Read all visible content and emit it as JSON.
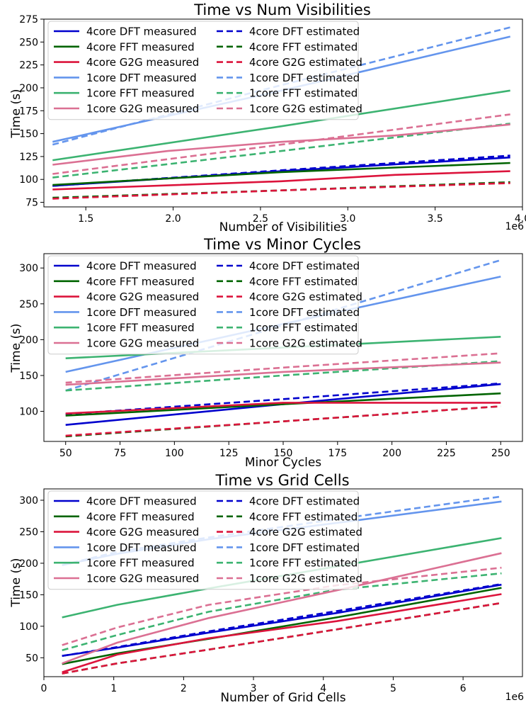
{
  "figure": {
    "legend_entries": [
      {
        "label": "4core DFT measured",
        "color": "#0000cd",
        "dash": false
      },
      {
        "label": "4core FFT measured",
        "color": "#006400",
        "dash": false
      },
      {
        "label": "4core G2G measured",
        "color": "#dc143c",
        "dash": false
      },
      {
        "label": "1core DFT measured",
        "color": "#6495ed",
        "dash": false
      },
      {
        "label": "1core FFT measured",
        "color": "#3cb371",
        "dash": false
      },
      {
        "label": "1core G2G measured",
        "color": "#db7093",
        "dash": false
      },
      {
        "label": "4core DFT estimated",
        "color": "#0000cd",
        "dash": true
      },
      {
        "label": "4core FFT estimated",
        "color": "#006400",
        "dash": true
      },
      {
        "label": "4core G2G estimated",
        "color": "#dc143c",
        "dash": true
      },
      {
        "label": "1core DFT estimated",
        "color": "#6495ed",
        "dash": true
      },
      {
        "label": "1core FFT estimated",
        "color": "#3cb371",
        "dash": true
      },
      {
        "label": "1core G2G estimated",
        "color": "#db7093",
        "dash": true
      }
    ]
  },
  "chart_data": [
    {
      "type": "line",
      "title": "Time vs Num Visibilities",
      "xlabel": "Number of Visibilities",
      "ylabel": "Time (s)",
      "x_offset_label": "1e6",
      "xlim": [
        1.26,
        4.0
      ],
      "ylim": [
        70,
        275
      ],
      "xticks": [
        1.5,
        2.0,
        2.5,
        3.0,
        3.5,
        4.0
      ],
      "xtick_labels": [
        "1.5",
        "2.0",
        "2.5",
        "3.0",
        "3.5",
        "4.0"
      ],
      "yticks": [
        75,
        100,
        125,
        150,
        175,
        200,
        225,
        250,
        275
      ],
      "ytick_labels": [
        "75",
        "100",
        "125",
        "150",
        "175",
        "200",
        "225",
        "250",
        "275"
      ],
      "legend_position": "upper-left",
      "series": [
        {
          "name": "4core DFT measured",
          "color": "#0000cd",
          "dash": false,
          "x": [
            1.31,
            2.62,
            3.93
          ],
          "y": [
            93,
            109,
            124
          ]
        },
        {
          "name": "4core FFT measured",
          "color": "#006400",
          "dash": false,
          "x": [
            1.31,
            2.62,
            3.93
          ],
          "y": [
            94,
            108,
            118
          ]
        },
        {
          "name": "4core G2G measured",
          "color": "#dc143c",
          "dash": false,
          "x": [
            1.31,
            2.62,
            3.27,
            3.93
          ],
          "y": [
            89,
            98,
            105,
            109
          ]
        },
        {
          "name": "1core DFT measured",
          "color": "#6495ed",
          "dash": false,
          "x": [
            1.31,
            2.62,
            3.93
          ],
          "y": [
            141,
            197,
            256
          ]
        },
        {
          "name": "1core FFT measured",
          "color": "#3cb371",
          "dash": false,
          "x": [
            1.31,
            2.62,
            3.93
          ],
          "y": [
            121,
            158,
            197
          ]
        },
        {
          "name": "1core G2G measured",
          "color": "#db7093",
          "dash": false,
          "x": [
            1.31,
            1.97,
            2.62,
            3.27,
            3.93
          ],
          "y": [
            116,
            131,
            141,
            148,
            160
          ]
        },
        {
          "name": "4core DFT estimated",
          "color": "#0000cd",
          "dash": true,
          "x": [
            1.31,
            2.62,
            3.93
          ],
          "y": [
            93,
            110,
            126
          ]
        },
        {
          "name": "4core FFT estimated",
          "color": "#006400",
          "dash": true,
          "x": [
            1.31,
            2.62,
            3.93
          ],
          "y": [
            80,
            88,
            97
          ]
        },
        {
          "name": "4core G2G estimated",
          "color": "#dc143c",
          "dash": true,
          "x": [
            1.31,
            2.62,
            3.93
          ],
          "y": [
            79,
            88,
            96
          ]
        },
        {
          "name": "1core DFT estimated",
          "color": "#6495ed",
          "dash": true,
          "x": [
            1.31,
            2.62,
            3.93
          ],
          "y": [
            138,
            203,
            266
          ]
        },
        {
          "name": "1core FFT estimated",
          "color": "#3cb371",
          "dash": true,
          "x": [
            1.31,
            2.62,
            3.93
          ],
          "y": [
            102,
            131,
            161
          ]
        },
        {
          "name": "1core G2G estimated",
          "color": "#db7093",
          "dash": true,
          "x": [
            1.31,
            2.62,
            3.93
          ],
          "y": [
            106,
            138,
            171
          ]
        }
      ]
    },
    {
      "type": "line",
      "title": "Time vs Minor Cycles",
      "xlabel": "Minor Cycles",
      "ylabel": "Time (s)",
      "x_offset_label": "",
      "xlim": [
        40,
        260
      ],
      "ylim": [
        58,
        320
      ],
      "xticks": [
        50,
        75,
        100,
        125,
        150,
        175,
        200,
        225,
        250
      ],
      "xtick_labels": [
        "50",
        "75",
        "100",
        "125",
        "150",
        "175",
        "200",
        "225",
        "250"
      ],
      "yticks": [
        100,
        150,
        200,
        250,
        300
      ],
      "ytick_labels": [
        "100",
        "150",
        "200",
        "250",
        "300"
      ],
      "legend_position": "upper-left",
      "series": [
        {
          "name": "4core DFT measured",
          "color": "#0000cd",
          "dash": false,
          "x": [
            50,
            150,
            250
          ],
          "y": [
            81,
            110,
            138
          ]
        },
        {
          "name": "4core FFT measured",
          "color": "#006400",
          "dash": false,
          "x": [
            50,
            150,
            250
          ],
          "y": [
            94,
            110,
            125
          ]
        },
        {
          "name": "4core G2G measured",
          "color": "#dc143c",
          "dash": false,
          "x": [
            50,
            150,
            250
          ],
          "y": [
            97,
            112,
            112
          ]
        },
        {
          "name": "1core DFT measured",
          "color": "#6495ed",
          "dash": false,
          "x": [
            50,
            150,
            250
          ],
          "y": [
            155,
            222,
            288
          ]
        },
        {
          "name": "1core FFT measured",
          "color": "#3cb371",
          "dash": false,
          "x": [
            50,
            150,
            250
          ],
          "y": [
            174,
            189,
            204
          ]
        },
        {
          "name": "1core G2G measured",
          "color": "#db7093",
          "dash": false,
          "x": [
            50,
            150,
            250
          ],
          "y": [
            137,
            155,
            168
          ]
        },
        {
          "name": "4core DFT estimated",
          "color": "#0000cd",
          "dash": true,
          "x": [
            50,
            150,
            250
          ],
          "y": [
            96,
            117,
            139
          ]
        },
        {
          "name": "4core FFT estimated",
          "color": "#006400",
          "dash": true,
          "x": [
            50,
            150,
            250
          ],
          "y": [
            65,
            86,
            107
          ]
        },
        {
          "name": "4core G2G estimated",
          "color": "#dc143c",
          "dash": true,
          "x": [
            50,
            150,
            250
          ],
          "y": [
            66,
            86,
            107
          ]
        },
        {
          "name": "1core DFT estimated",
          "color": "#6495ed",
          "dash": true,
          "x": [
            50,
            150,
            250
          ],
          "y": [
            129,
            220,
            311
          ]
        },
        {
          "name": "1core FFT estimated",
          "color": "#3cb371",
          "dash": true,
          "x": [
            50,
            150,
            250
          ],
          "y": [
            129,
            150,
            170
          ]
        },
        {
          "name": "1core G2G estimated",
          "color": "#db7093",
          "dash": true,
          "x": [
            50,
            150,
            250
          ],
          "y": [
            140,
            161,
            181
          ]
        }
      ]
    },
    {
      "type": "line",
      "title": "Time vs Grid Cells",
      "xlabel": "Number of Grid Cells",
      "ylabel": "Time (s)",
      "x_offset_label": "1e6",
      "xlim": [
        0,
        6.85
      ],
      "ylim": [
        20,
        318
      ],
      "xticks": [
        0,
        1,
        2,
        3,
        4,
        5,
        6
      ],
      "xtick_labels": [
        "0",
        "1",
        "2",
        "3",
        "4",
        "5",
        "6"
      ],
      "yticks": [
        50,
        100,
        150,
        200,
        250,
        300
      ],
      "ytick_labels": [
        "50",
        "100",
        "150",
        "200",
        "250",
        "300"
      ],
      "legend_position": "upper-left",
      "series": [
        {
          "name": "4core DFT measured",
          "color": "#0000cd",
          "dash": false,
          "x": [
            0.26,
            1.05,
            2.36,
            4.19,
            6.55
          ],
          "y": [
            53,
            66,
            90,
            121,
            166
          ]
        },
        {
          "name": "4core FFT measured",
          "color": "#006400",
          "dash": false,
          "x": [
            0.26,
            1.05,
            2.36,
            4.19,
            6.55
          ],
          "y": [
            40,
            57,
            80,
            114,
            161
          ]
        },
        {
          "name": "4core G2G measured",
          "color": "#dc143c",
          "dash": false,
          "x": [
            0.26,
            1.05,
            2.36,
            4.19,
            6.55
          ],
          "y": [
            27,
            55,
            81,
            108,
            151
          ]
        },
        {
          "name": "1core DFT measured",
          "color": "#6495ed",
          "dash": false,
          "x": [
            0.26,
            1.05,
            2.36,
            4.19,
            6.55
          ],
          "y": [
            197,
            215,
            238,
            264,
            298
          ]
        },
        {
          "name": "1core FFT measured",
          "color": "#3cb371",
          "dash": false,
          "x": [
            0.26,
            1.05,
            2.36,
            4.19,
            6.55
          ],
          "y": [
            114,
            134,
            160,
            195,
            240
          ]
        },
        {
          "name": "1core G2G measured",
          "color": "#db7093",
          "dash": false,
          "x": [
            0.26,
            1.05,
            2.36,
            4.19,
            6.55
          ],
          "y": [
            41,
            74,
            113,
            157,
            216
          ]
        },
        {
          "name": "4core DFT estimated",
          "color": "#0000cd",
          "dash": true,
          "x": [
            0.26,
            1.05,
            2.36,
            4.19,
            6.55
          ],
          "y": [
            53,
            67,
            92,
            124,
            167
          ]
        },
        {
          "name": "4core FFT estimated",
          "color": "#006400",
          "dash": true,
          "x": [
            0.26,
            1.05,
            2.36,
            4.19,
            6.55
          ],
          "y": [
            25,
            41,
            63,
            95,
            137
          ]
        },
        {
          "name": "4core G2G estimated",
          "color": "#dc143c",
          "dash": true,
          "x": [
            0.26,
            1.05,
            2.36,
            4.19,
            6.55
          ],
          "y": [
            25,
            41,
            63,
            95,
            137
          ]
        },
        {
          "name": "1core DFT estimated",
          "color": "#6495ed",
          "dash": true,
          "x": [
            0.26,
            1.05,
            2.36,
            4.19,
            6.55
          ],
          "y": [
            197,
            218,
            241,
            270,
            306
          ]
        },
        {
          "name": "1core FFT estimated",
          "color": "#3cb371",
          "dash": true,
          "x": [
            0.26,
            1.05,
            2.36,
            4.19,
            6.55
          ],
          "y": [
            62,
            86,
            123,
            158,
            184
          ]
        },
        {
          "name": "1core G2G estimated",
          "color": "#db7093",
          "dash": true,
          "x": [
            0.26,
            1.05,
            2.36,
            4.19,
            6.55
          ],
          "y": [
            70,
            98,
            134,
            165,
            193
          ]
        }
      ]
    }
  ]
}
